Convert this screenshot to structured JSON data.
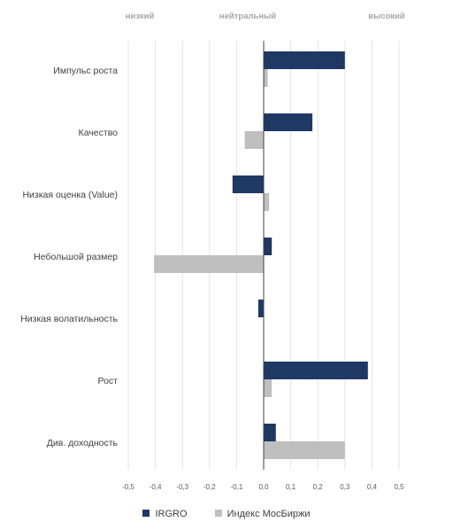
{
  "chart_data": {
    "type": "bar",
    "orientation": "horizontal",
    "top_labels": {
      "low": "низкий",
      "neutral": "нейтральный",
      "high": "высокий"
    },
    "categories": [
      "Импульс роста",
      "Качество",
      "Низкая оценка (Value)",
      "Небольшой размер",
      "Низкая волатильность",
      "Рост",
      "Див. доходность"
    ],
    "series": [
      {
        "name": "IRGRO",
        "color": "#1f3864",
        "values": [
          0.3,
          0.18,
          -0.115,
          0.03,
          -0.02,
          0.385,
          0.045
        ]
      },
      {
        "name": "Индекс МосБиржи",
        "color": "#bfbfbf",
        "values": [
          0.015,
          -0.07,
          0.02,
          -0.405,
          0.0,
          0.03,
          0.3
        ]
      }
    ],
    "xlim": [
      -0.5,
      0.5
    ],
    "xticks": [
      "-0,5",
      "-0,4",
      "-0,3",
      "-0,2",
      "-0,1",
      "0,0",
      "0,1",
      "0,2",
      "0,3",
      "0,4",
      "0,5"
    ],
    "grid": true,
    "legend_position": "bottom"
  }
}
